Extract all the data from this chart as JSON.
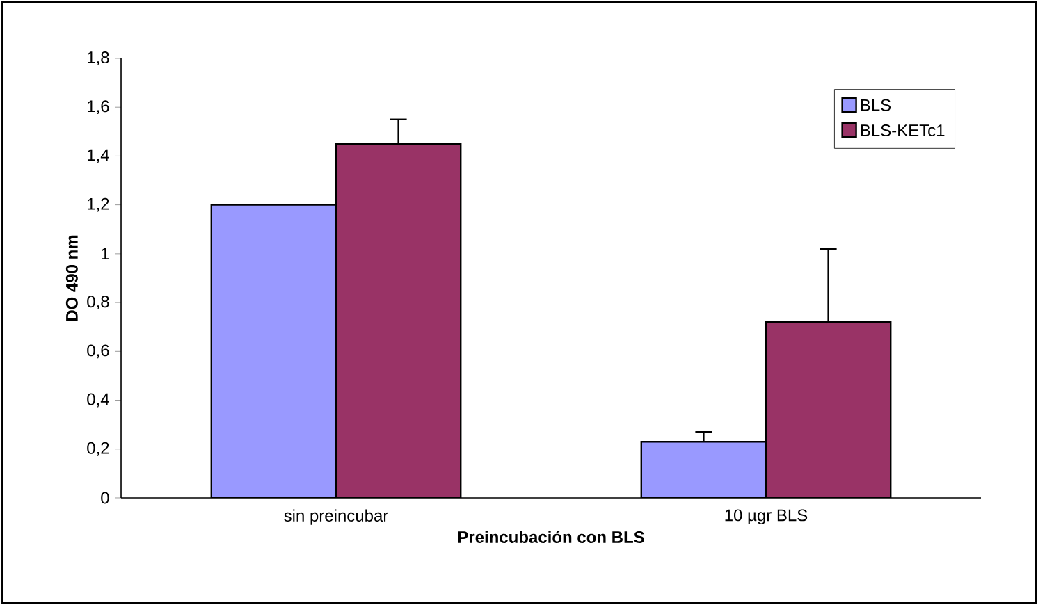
{
  "chart_data": {
    "type": "bar",
    "xlabel": "Preincubación con BLS",
    "ylabel": "DO 490 nm",
    "categories": [
      "sin preincubar",
      "10 µgr BLS"
    ],
    "series": [
      {
        "name": "BLS",
        "color": "#9999ff",
        "values": [
          1.2,
          0.23
        ],
        "errors": [
          null,
          0.04
        ]
      },
      {
        "name": "BLS-KETc1",
        "color": "#993366",
        "values": [
          1.45,
          0.72
        ],
        "errors": [
          0.1,
          0.3
        ]
      }
    ],
    "ylim": [
      0,
      1.8
    ],
    "yticks": [
      0,
      {
        "value": 0.2,
        "label": "0,2"
      },
      {
        "value": 0.4,
        "label": "0,4"
      },
      {
        "value": 0.6,
        "label": "0,6"
      },
      {
        "value": 0.8,
        "label": "0,8"
      },
      1,
      {
        "value": 1.2,
        "label": "1,2"
      },
      {
        "value": 1.4,
        "label": "1,4"
      },
      {
        "value": 1.6,
        "label": "1,6"
      },
      {
        "value": 1.8,
        "label": "1,8"
      }
    ],
    "legend": "top right",
    "grid": false
  }
}
